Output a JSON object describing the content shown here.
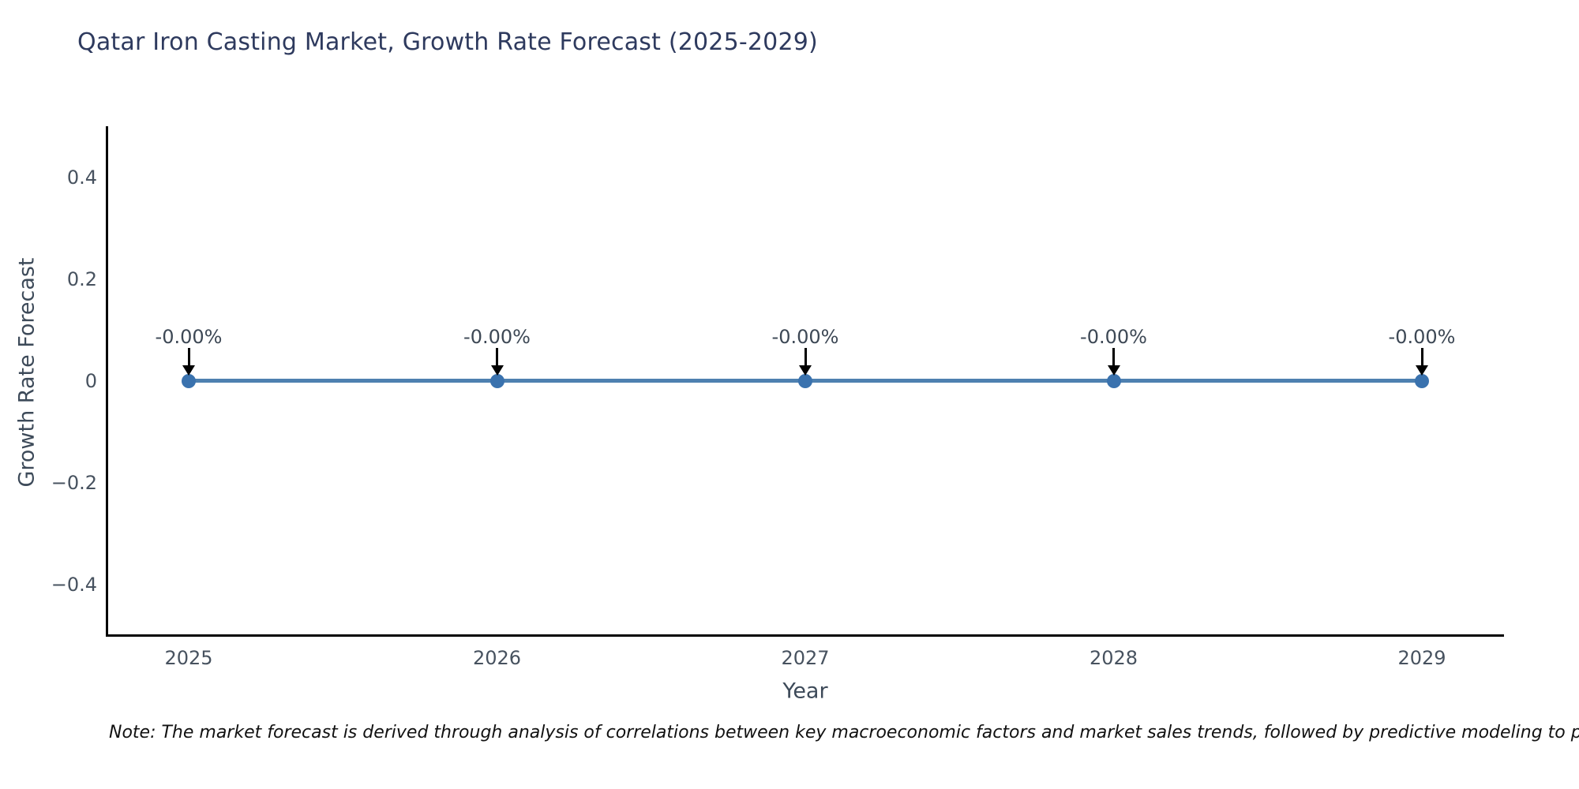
{
  "figure": {
    "note": "Note: The market forecast is derived through analysis of correlations between key macroeconomic factors and market sales trends, followed by predictive modeling to project future sa"
  },
  "chart_data": {
    "type": "line",
    "title": "Qatar Iron Casting Market, Growth Rate Forecast (2025-2029)",
    "xlabel": "Year",
    "ylabel": "Growth Rate Forecast",
    "x": [
      2025,
      2026,
      2027,
      2028,
      2029
    ],
    "xtick_labels": [
      "2025",
      "2026",
      "2027",
      "2028",
      "2029"
    ],
    "series": [
      {
        "name": "Growth Rate Forecast",
        "values": [
          0,
          0,
          0,
          0,
          0
        ]
      }
    ],
    "point_labels": [
      "-0.00%",
      "-0.00%",
      "-0.00%",
      "-0.00%",
      "-0.00%"
    ],
    "ylim": [
      -0.5,
      0.5
    ],
    "yticks": [
      0.4,
      0.2,
      0,
      -0.2,
      -0.4
    ],
    "ytick_labels": [
      "0.4",
      "0.2",
      "0",
      "−0.2",
      "−0.4"
    ],
    "grid": false,
    "legend": "none",
    "colors": {
      "line": "#4e80b0",
      "marker": "#3a72ae",
      "arrow": "#000000",
      "title": "#2e3a5e",
      "tick": "#47525f",
      "axis_label": "#3d4a59",
      "annotation": "#3d4855",
      "spine": "#000000",
      "note": "#111111",
      "background": "#ffffff"
    }
  }
}
